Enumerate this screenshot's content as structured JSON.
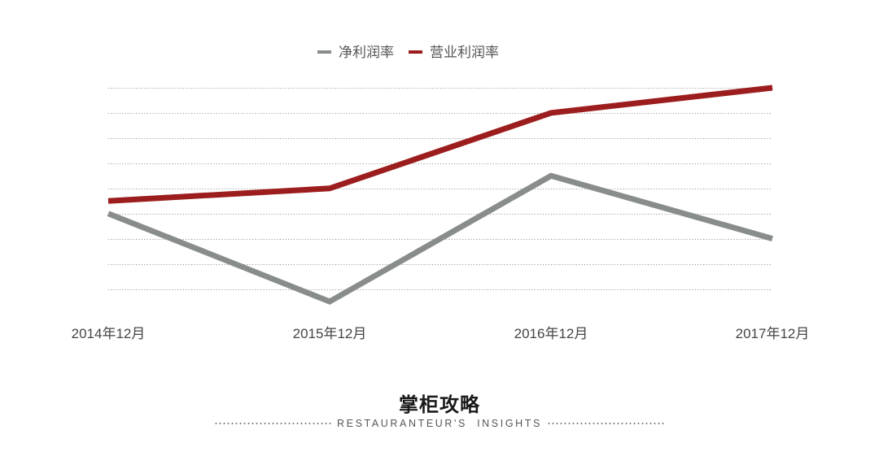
{
  "chart_data": {
    "type": "line",
    "categories": [
      "2014年12月",
      "2015年12月",
      "2016年12月",
      "2017年12月"
    ],
    "series": [
      {
        "name": "净利润率",
        "color": "#888d8c",
        "values": [
          3.0,
          -0.5,
          4.5,
          2.0
        ]
      },
      {
        "name": "营业利润率",
        "color": "#9c1d1d",
        "values": [
          3.5,
          4.0,
          7.0,
          8.0
        ]
      }
    ],
    "ylim": [
      -0.5,
      8.0
    ],
    "grid": true,
    "legend_position": "top-center",
    "yticks_visible": false
  },
  "brand": {
    "name": "掌柜攻略",
    "tagline": "RESTAURANTEUR'S  INSIGHTS"
  }
}
